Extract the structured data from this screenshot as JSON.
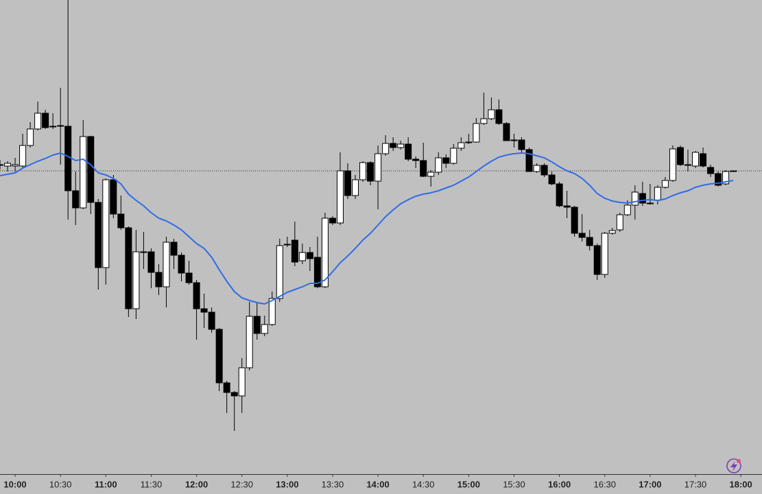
{
  "chart_data": {
    "type": "candlestick",
    "x": [
      590,
      595,
      600,
      605,
      610,
      615,
      620,
      625,
      630,
      635,
      640,
      645,
      650,
      655,
      660,
      665,
      670,
      675,
      680,
      685,
      690,
      695,
      700,
      705,
      710,
      715,
      720,
      725,
      730,
      735,
      740,
      745,
      750,
      755,
      760,
      765,
      770,
      775,
      780,
      785,
      790,
      795,
      800,
      805,
      810,
      815,
      820,
      825,
      830,
      835,
      840,
      845,
      850,
      855,
      860,
      865,
      870,
      875,
      880,
      885,
      890,
      895,
      900,
      905,
      910,
      915,
      920,
      925,
      930,
      935,
      940,
      945,
      950,
      955,
      960,
      965,
      970,
      975,
      980,
      985,
      990,
      995,
      1000,
      1005,
      1010,
      1015,
      1020,
      1025,
      1030,
      1035,
      1040,
      1045,
      1050,
      1055,
      1060,
      1065,
      1070,
      1075
    ],
    "open": [
      460,
      458,
      458,
      458,
      488,
      512,
      535,
      516,
      516,
      516,
      422,
      397,
      501,
      405,
      310,
      438,
      388,
      368,
      250,
      333,
      333,
      303,
      282,
      347,
      328,
      302,
      288,
      250,
      245,
      220,
      142,
      128,
      123,
      164,
      239,
      214,
      227,
      265,
      344,
      350,
      320,
      332,
      325,
      282,
      382,
      375,
      451,
      415,
      438,
      463,
      436,
      476,
      491,
      485,
      490,
      468,
      466,
      443,
      449,
      470,
      462,
      484,
      493,
      493,
      520,
      527,
      540,
      520,
      496,
      496,
      482,
      450,
      459,
      445,
      432,
      400,
      398,
      360,
      354,
      342,
      300,
      360,
      365,
      387,
      401,
      418,
      404,
      408,
      427,
      437,
      485,
      460,
      458,
      476,
      456,
      447,
      432,
      451
    ],
    "high": [
      467,
      465,
      470,
      505,
      522,
      552,
      540,
      535,
      572,
      700,
      450,
      525,
      502,
      410,
      440,
      445,
      415,
      370,
      365,
      362,
      338,
      315,
      355,
      352,
      332,
      320,
      292,
      272,
      252,
      222,
      145,
      130,
      178,
      260,
      260,
      240,
      275,
      352,
      355,
      377,
      345,
      340,
      355,
      390,
      385,
      478,
      462,
      445,
      465,
      465,
      488,
      503,
      500,
      495,
      500,
      472,
      492,
      452,
      478,
      475,
      490,
      500,
      505,
      528,
      565,
      558,
      555,
      522,
      505,
      500,
      485,
      462,
      462,
      450,
      435,
      422,
      400,
      388,
      365,
      345,
      362,
      368,
      390,
      408,
      430,
      435,
      432,
      430,
      442,
      488,
      488,
      482,
      480,
      485,
      460,
      450,
      452,
      451
    ],
    "low": [
      453,
      450,
      450,
      455,
      485,
      510,
      512,
      512,
      460,
      380,
      372,
      395,
      388,
      278,
      285,
      382,
      365,
      238,
      235,
      308,
      280,
      270,
      252,
      308,
      290,
      285,
      205,
      222,
      215,
      130,
      98,
      72,
      98,
      160,
      205,
      210,
      225,
      260,
      340,
      312,
      315,
      305,
      280,
      280,
      372,
      372,
      410,
      410,
      435,
      430,
      395,
      473,
      480,
      482,
      465,
      455,
      442,
      428,
      445,
      455,
      460,
      480,
      490,
      492,
      518,
      525,
      518,
      495,
      485,
      478,
      450,
      448,
      442,
      430,
      398,
      382,
      355,
      348,
      335,
      292,
      295,
      358,
      362,
      385,
      380,
      400,
      402,
      402,
      425,
      435,
      458,
      450,
      455,
      456,
      442,
      428,
      430,
      450
    ],
    "close": [
      460,
      462,
      460,
      488,
      512,
      535,
      514,
      516,
      517,
      422,
      397,
      501,
      405,
      310,
      438,
      388,
      368,
      250,
      333,
      333,
      303,
      282,
      347,
      328,
      302,
      288,
      250,
      245,
      220,
      142,
      128,
      123,
      164,
      239,
      214,
      227,
      265,
      342,
      344,
      318,
      332,
      323,
      282,
      382,
      375,
      451,
      415,
      438,
      463,
      436,
      476,
      491,
      485,
      490,
      468,
      466,
      443,
      449,
      470,
      462,
      484,
      492,
      493,
      520,
      527,
      540,
      520,
      495,
      496,
      482,
      450,
      459,
      445,
      432,
      400,
      398,
      360,
      354,
      342,
      300,
      360,
      364,
      387,
      401,
      420,
      404,
      404,
      427,
      437,
      483,
      460,
      460,
      478,
      458,
      447,
      430,
      450,
      451
    ],
    "up_color": "#ffffff",
    "down_color": "#000000",
    "line_values": [
      444,
      446,
      448,
      455,
      460,
      465,
      469,
      474,
      477,
      472,
      466,
      468,
      460,
      448,
      445,
      440,
      432,
      417,
      408,
      400,
      390,
      382,
      378,
      372,
      365,
      355,
      345,
      338,
      325,
      307,
      290,
      275,
      266,
      262,
      259,
      257,
      262,
      268,
      274,
      278,
      282,
      287,
      287,
      292,
      304,
      317,
      327,
      338,
      350,
      360,
      372,
      384,
      394,
      403,
      409,
      414,
      417,
      419,
      422,
      426,
      430,
      436,
      442,
      450,
      458,
      465,
      471,
      474,
      476,
      477,
      476,
      473,
      470,
      464,
      457,
      451,
      447,
      440,
      430,
      418,
      411,
      407,
      405,
      404,
      406,
      408,
      409,
      408,
      410,
      415,
      419,
      422,
      427,
      430,
      432,
      433,
      435,
      437
    ],
    "line_color": "#2f6be8",
    "last_price": 451,
    "xlim": [
      590,
      1094
    ],
    "ylim": [
      10,
      700
    ],
    "xticks": [
      {
        "value": 600,
        "label": "10:00"
      },
      {
        "value": 630,
        "label": "10:30"
      },
      {
        "value": 660,
        "label": "11:00"
      },
      {
        "value": 690,
        "label": "11:30"
      },
      {
        "value": 720,
        "label": "12:00"
      },
      {
        "value": 750,
        "label": "12:30"
      },
      {
        "value": 780,
        "label": "13:00"
      },
      {
        "value": 810,
        "label": "13:30"
      },
      {
        "value": 840,
        "label": "14:00"
      },
      {
        "value": 870,
        "label": "14:30"
      },
      {
        "value": 900,
        "label": "15:00"
      },
      {
        "value": 930,
        "label": "15:30"
      },
      {
        "value": 960,
        "label": "16:00"
      },
      {
        "value": 990,
        "label": "16:30"
      },
      {
        "value": 1020,
        "label": "17:00"
      },
      {
        "value": 1050,
        "label": "17:30"
      },
      {
        "value": 1080,
        "label": "18:00"
      }
    ]
  }
}
